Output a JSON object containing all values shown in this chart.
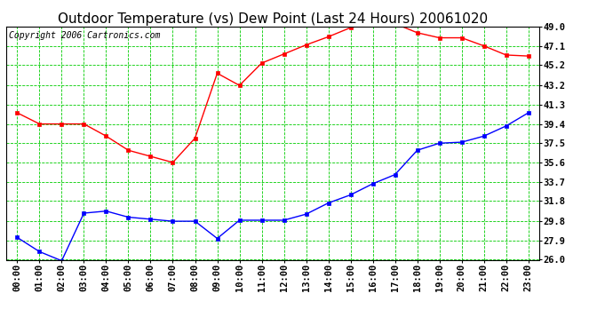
{
  "title": "Outdoor Temperature (vs) Dew Point (Last 24 Hours) 20061020",
  "copyright": "Copyright 2006 Cartronics.com",
  "x_labels": [
    "00:00",
    "01:00",
    "02:00",
    "03:00",
    "04:00",
    "05:00",
    "06:00",
    "07:00",
    "08:00",
    "09:00",
    "10:00",
    "11:00",
    "12:00",
    "13:00",
    "14:00",
    "15:00",
    "16:00",
    "17:00",
    "18:00",
    "19:00",
    "20:00",
    "21:00",
    "22:00",
    "23:00"
  ],
  "temp_data": [
    40.5,
    39.4,
    39.4,
    39.4,
    38.2,
    36.8,
    36.2,
    35.6,
    38.0,
    44.4,
    43.2,
    45.4,
    46.3,
    47.2,
    48.0,
    48.9,
    49.3,
    49.3,
    48.4,
    47.9,
    47.9,
    47.1,
    46.2,
    46.1
  ],
  "dew_data": [
    28.2,
    26.8,
    25.9,
    30.6,
    30.8,
    30.2,
    30.0,
    29.8,
    29.8,
    28.1,
    29.9,
    29.9,
    29.9,
    30.5,
    31.6,
    32.4,
    33.5,
    34.4,
    36.8,
    37.5,
    37.6,
    38.2,
    39.2,
    40.5
  ],
  "ylim": [
    26.0,
    49.0
  ],
  "yticks": [
    26.0,
    27.9,
    29.8,
    31.8,
    33.7,
    35.6,
    37.5,
    39.4,
    41.3,
    43.2,
    45.2,
    47.1,
    49.0
  ],
  "temp_color": "#ff0000",
  "dew_color": "#0000ff",
  "bg_color": "#ffffff",
  "grid_color": "#00cc00",
  "title_fontsize": 11,
  "tick_fontsize": 7.5,
  "copyright_fontsize": 7
}
